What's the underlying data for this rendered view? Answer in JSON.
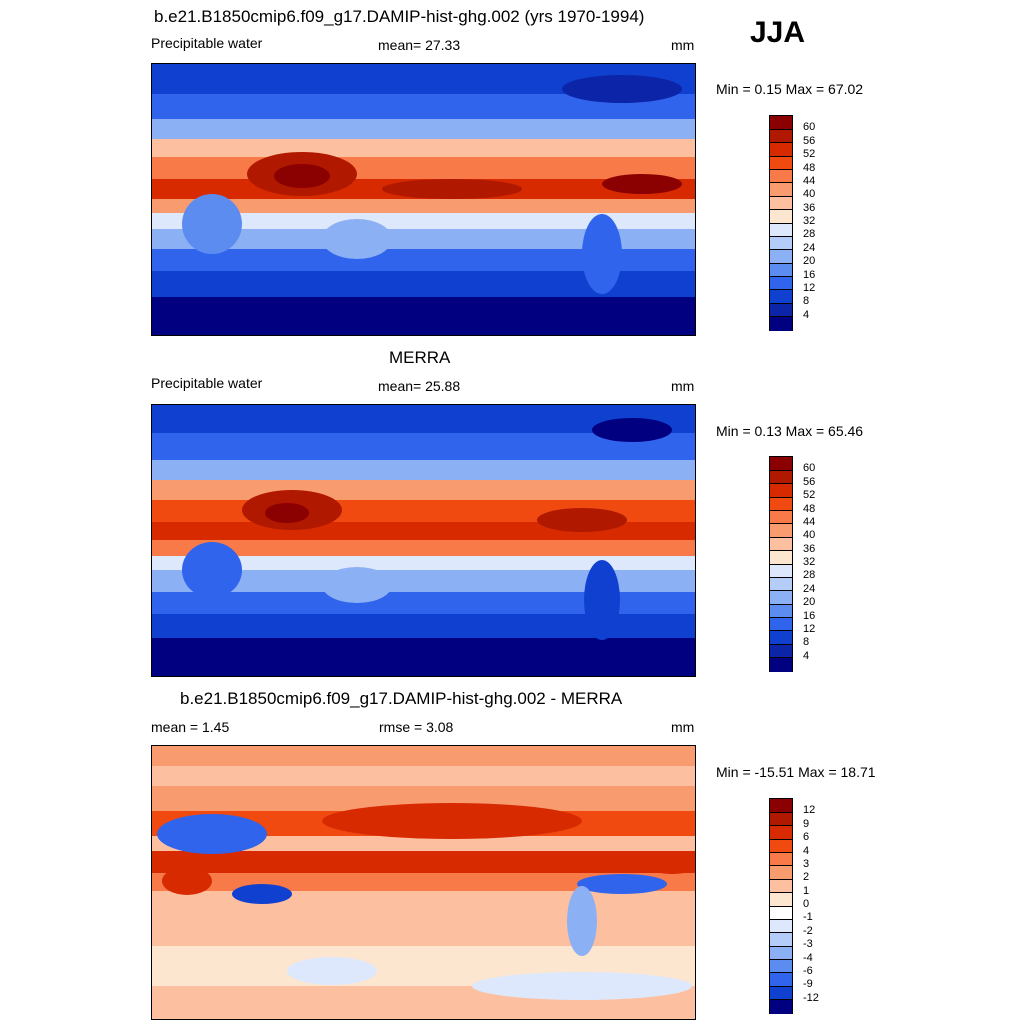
{
  "season": "JJA",
  "chart_data": [
    {
      "type": "heatmap",
      "title": "b.e21.B1850cmip6.f09_g17.DAMIP-hist-ghg.002 (yrs 1970-1994)",
      "left_label": "Precipitable water",
      "center_label": "mean=  27.33",
      "units": "mm",
      "minmax": "Min =   0.15 Max =  67.02",
      "colorbar": {
        "levels": [
          "60",
          "56",
          "52",
          "48",
          "44",
          "40",
          "36",
          "32",
          "28",
          "24",
          "20",
          "16",
          "12",
          "8",
          "4"
        ],
        "colors": [
          "#8b0000",
          "#b01800",
          "#d82a00",
          "#f04a10",
          "#f87a48",
          "#f89c70",
          "#fcc0a0",
          "#fde6cf",
          "#dde8fc",
          "#b4ccf8",
          "#8cb0f4",
          "#5c8cf0",
          "#3064ec",
          "#1040d0",
          "#0c24a8",
          "#000080"
        ]
      }
    },
    {
      "type": "heatmap",
      "title": "MERRA",
      "left_label": "Precipitable water",
      "center_label": "mean=  25.88",
      "units": "mm",
      "minmax": "Min =   0.13 Max =  65.46",
      "colorbar": {
        "levels": [
          "60",
          "56",
          "52",
          "48",
          "44",
          "40",
          "36",
          "32",
          "28",
          "24",
          "20",
          "16",
          "12",
          "8",
          "4"
        ],
        "colors": [
          "#8b0000",
          "#b01800",
          "#d82a00",
          "#f04a10",
          "#f87a48",
          "#f89c70",
          "#fcc0a0",
          "#fde6cf",
          "#dde8fc",
          "#b4ccf8",
          "#8cb0f4",
          "#5c8cf0",
          "#3064ec",
          "#1040d0",
          "#0c24a8",
          "#000080"
        ]
      }
    },
    {
      "type": "heatmap",
      "title": "b.e21.B1850cmip6.f09_g17.DAMIP-hist-ghg.002 - MERRA",
      "left_label": "mean =   1.45",
      "center_label": "rmse =   3.08",
      "units": "mm",
      "minmax": "Min = -15.51 Max =  18.71",
      "colorbar": {
        "levels": [
          "12",
          "9",
          "6",
          "4",
          "3",
          "2",
          "1",
          "0",
          "-1",
          "-2",
          "-3",
          "-4",
          "-6",
          "-9",
          "-12"
        ],
        "colors": [
          "#8b0000",
          "#b01800",
          "#d82a00",
          "#f04a10",
          "#f87a48",
          "#f89c70",
          "#fcc0a0",
          "#fde6cf",
          "#ffffff",
          "#dde8fc",
          "#b4ccf8",
          "#8cb0f4",
          "#5c8cf0",
          "#3064ec",
          "#1040d0",
          "#000080"
        ]
      }
    }
  ]
}
